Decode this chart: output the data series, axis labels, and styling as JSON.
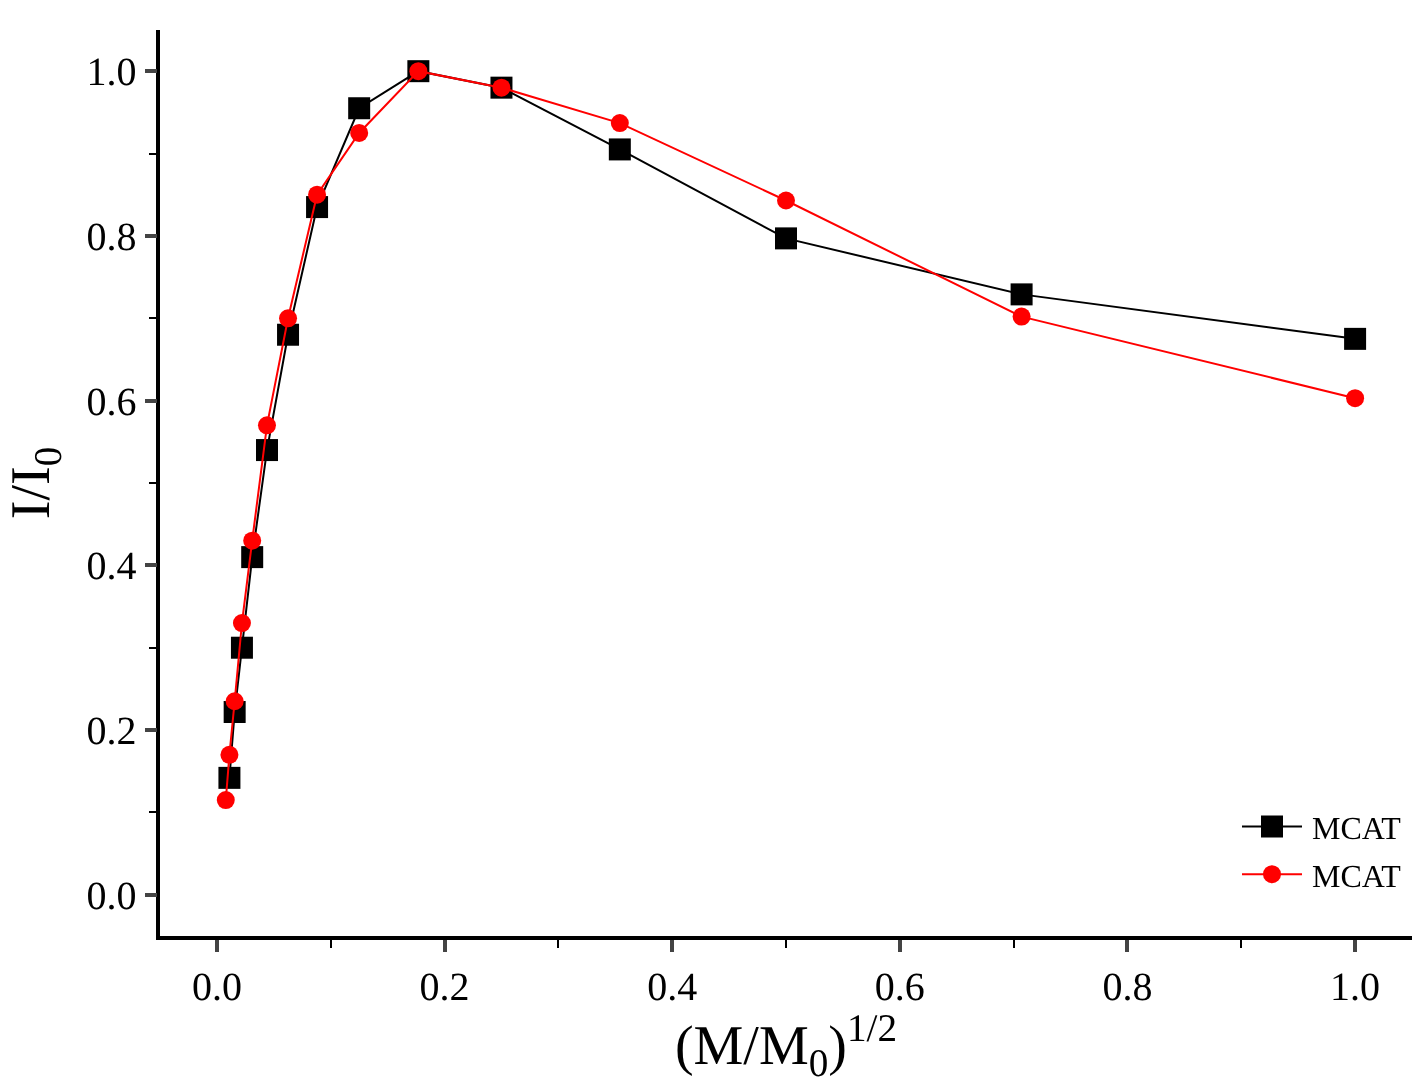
{
  "chart_data": {
    "type": "line",
    "xlabel": "(M/M$_{0}$)$^{1/2}$",
    "ylabel": "I/I$_{0}$",
    "xlim": [
      -0.05,
      1.05
    ],
    "ylim": [
      -0.05,
      1.05
    ],
    "xticks": [
      {
        "value": 0,
        "label": "0.0"
      },
      0.2,
      0.4,
      0.6,
      0.8,
      {
        "value": 1,
        "label": "1.0"
      }
    ],
    "yticks": [
      {
        "value": 0,
        "label": "0.0"
      },
      0.2,
      0.4,
      0.6,
      0.8,
      {
        "value": 1,
        "label": "1.0"
      }
    ],
    "legend": "bottom right",
    "line_style": "solid",
    "series": [
      {
        "name": "MCAT",
        "color": "#000000",
        "marker": "square",
        "x": [
          0.011,
          0.0156,
          0.022,
          0.031,
          0.044,
          0.0625,
          0.088,
          0.125,
          0.177,
          0.25,
          0.354,
          0.5,
          0.707,
          1.0
        ],
        "values": [
          0.142,
          0.222,
          0.3,
          0.41,
          0.54,
          0.68,
          0.835,
          0.955,
          1.0,
          0.98,
          0.905,
          0.797,
          0.729,
          0.675
        ]
      },
      {
        "name": "MCAT",
        "color": "#ff0000",
        "marker": "circle",
        "x": [
          0.0078,
          0.011,
          0.0156,
          0.022,
          0.031,
          0.044,
          0.0625,
          0.088,
          0.125,
          0.177,
          0.25,
          0.354,
          0.5,
          0.707,
          1.0
        ],
        "values": [
          0.115,
          0.17,
          0.235,
          0.33,
          0.43,
          0.57,
          0.7,
          0.85,
          0.925,
          1.0,
          0.98,
          0.937,
          0.843,
          0.702,
          0.603
        ]
      }
    ]
  }
}
